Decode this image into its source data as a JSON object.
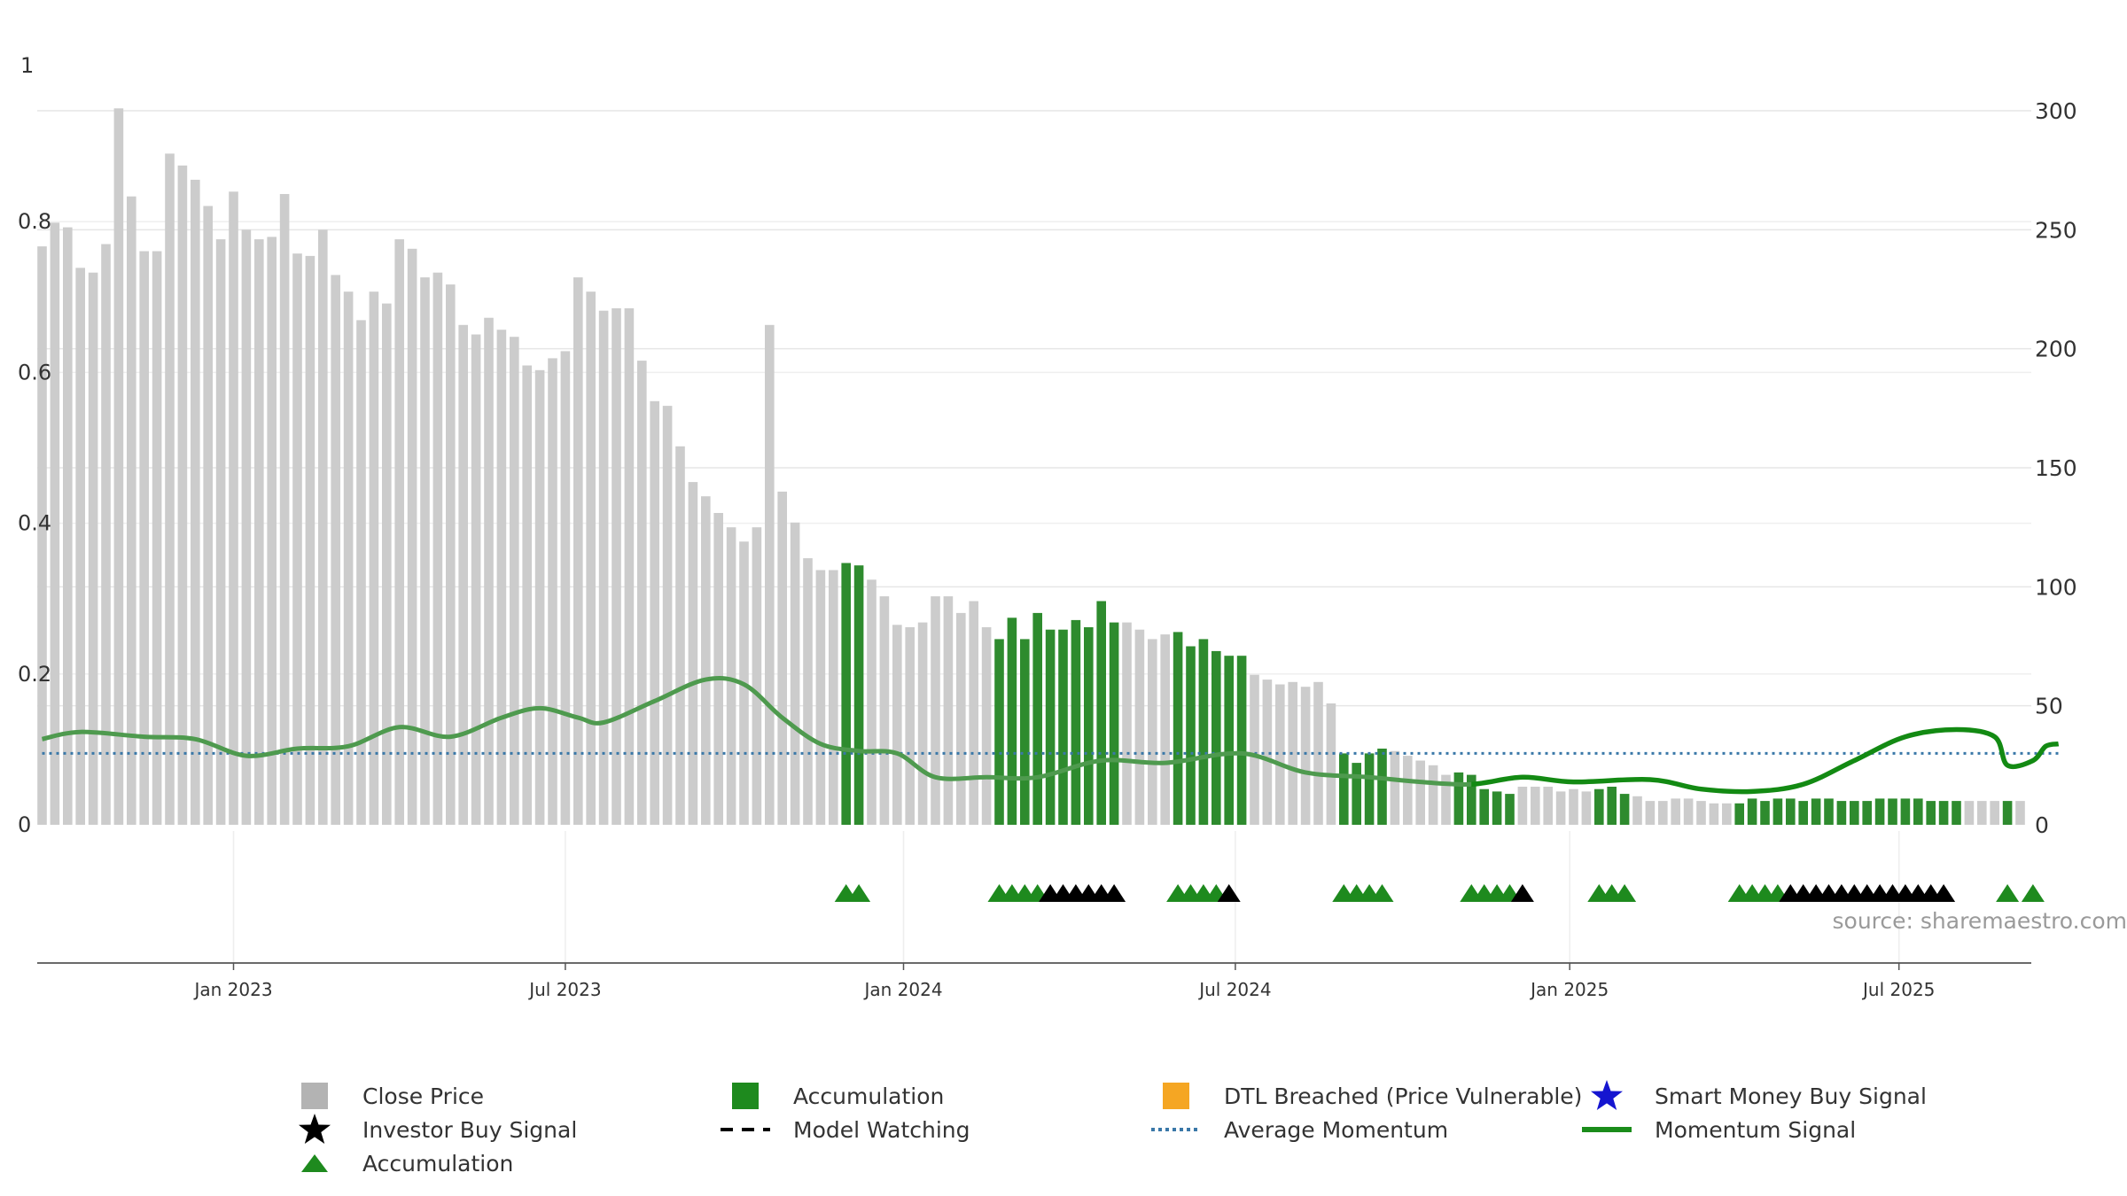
{
  "chart_data": {
    "type": "bar",
    "source_text": "source: sharemaestro.com",
    "left_axis": {
      "ticks": [
        "0",
        "0.2",
        "0.4",
        "0.6",
        "0.8",
        "1"
      ],
      "range": [
        0,
        1
      ]
    },
    "right_axis": {
      "ticks": [
        "0",
        "50",
        "100",
        "150",
        "200",
        "250",
        "300"
      ],
      "range": [
        0,
        300
      ]
    },
    "x_ticks": [
      {
        "label": "Jan 2023",
        "week": 15
      },
      {
        "label": "Jul 2023",
        "week": 41
      },
      {
        "label": "Jan 2024",
        "week": 67.5
      },
      {
        "label": "Jul 2024",
        "week": 93.5
      },
      {
        "label": "Jan 2025",
        "week": 119.7
      },
      {
        "label": "Jul 2025",
        "week": 145.5
      }
    ],
    "close_price": [
      243,
      253,
      251,
      234,
      232,
      244,
      301,
      264,
      241,
      241,
      282,
      277,
      271,
      260,
      246,
      266,
      250,
      246,
      247,
      265,
      240,
      239,
      250,
      231,
      224,
      212,
      224,
      219,
      246,
      242,
      230,
      232,
      227,
      210,
      206,
      213,
      208,
      205,
      193,
      191,
      196,
      199,
      230,
      224,
      216,
      217,
      217,
      195,
      178,
      176,
      159,
      144,
      138,
      131,
      125,
      119,
      125,
      210,
      140,
      127,
      112,
      107,
      107,
      110,
      109,
      103,
      96,
      84,
      83,
      85,
      96,
      96,
      89,
      94,
      83,
      78,
      87,
      78,
      89,
      82,
      82,
      86,
      83,
      94,
      85,
      85,
      82,
      78,
      80,
      81,
      75,
      78,
      73,
      71,
      71,
      63,
      61,
      59,
      60,
      58,
      60,
      51,
      30,
      26,
      30,
      32,
      31,
      29,
      27,
      25,
      21,
      22,
      21,
      15,
      14,
      13,
      16,
      16,
      16,
      14,
      15,
      14,
      15,
      16,
      13,
      12,
      10,
      10,
      11,
      11,
      10,
      9,
      9,
      9,
      11,
      10,
      11,
      11,
      10,
      11,
      11,
      10,
      10,
      10,
      11,
      11,
      11,
      11,
      10,
      10,
      10,
      10,
      10,
      10,
      10,
      10
    ],
    "accumulation_weeks": [
      63,
      64,
      75,
      76,
      77,
      78,
      79,
      80,
      81,
      82,
      83,
      84,
      89,
      90,
      91,
      92,
      93,
      94,
      102,
      103,
      104,
      105,
      111,
      112,
      113,
      114,
      115,
      122,
      123,
      124,
      133,
      134,
      135,
      136,
      137,
      138,
      139,
      140,
      141,
      142,
      143,
      144,
      145,
      146,
      147,
      148,
      149,
      150,
      154,
      156
    ],
    "signal_rows": {
      "accumulation_triangles": [
        63,
        64,
        75,
        76,
        77,
        78,
        89,
        90,
        91,
        92,
        102,
        103,
        104,
        105,
        112,
        113,
        114,
        115,
        122,
        123,
        124,
        133,
        134,
        135,
        136,
        154,
        156
      ],
      "investor_buy_signals": [
        79,
        80,
        81,
        82,
        83,
        84,
        93,
        116,
        137,
        138,
        139,
        140,
        141,
        142,
        143,
        144,
        145,
        146,
        147,
        148,
        149
      ]
    },
    "average_momentum": 30,
    "momentum_signal": [
      [
        0,
        36
      ],
      [
        3,
        39
      ],
      [
        8,
        37
      ],
      [
        12,
        36
      ],
      [
        16,
        29
      ],
      [
        20,
        32
      ],
      [
        24,
        33
      ],
      [
        28,
        41
      ],
      [
        32,
        37
      ],
      [
        36,
        45
      ],
      [
        39,
        49
      ],
      [
        42,
        45
      ],
      [
        44,
        43
      ],
      [
        48,
        52
      ],
      [
        52,
        61
      ],
      [
        55,
        59
      ],
      [
        58,
        45
      ],
      [
        61,
        34
      ],
      [
        64,
        31
      ],
      [
        67,
        30
      ],
      [
        70,
        20
      ],
      [
        74,
        20
      ],
      [
        78,
        20
      ],
      [
        83,
        27
      ],
      [
        88,
        26
      ],
      [
        94,
        30
      ],
      [
        99,
        22
      ],
      [
        104,
        20
      ],
      [
        108,
        18
      ],
      [
        112,
        17
      ],
      [
        116,
        20
      ],
      [
        120,
        18
      ],
      [
        126,
        19
      ],
      [
        130,
        15
      ],
      [
        134,
        14
      ],
      [
        138,
        17
      ],
      [
        142,
        27
      ],
      [
        146,
        37
      ],
      [
        150,
        40
      ],
      [
        153,
        37
      ],
      [
        154,
        25
      ],
      [
        156,
        27
      ],
      [
        157,
        33
      ],
      [
        158,
        34
      ]
    ]
  },
  "legend": [
    {
      "key": "close_price",
      "label": "Close Price",
      "color": "#b3b3b3",
      "symbol": "square"
    },
    {
      "key": "accumulation_bar",
      "label": "Accumulation",
      "color": "#1e8a1e",
      "symbol": "square"
    },
    {
      "key": "dtl_breached",
      "label": "DTL Breached (Price Vulnerable)",
      "color": "#f5a623",
      "symbol": "square"
    },
    {
      "key": "smart_money",
      "label": "Smart Money Buy Signal",
      "color": "#1515d0",
      "symbol": "star"
    },
    {
      "key": "investor_buy",
      "label": "Investor Buy Signal",
      "color": "#000000",
      "symbol": "star"
    },
    {
      "key": "model_watching",
      "label": "Model Watching",
      "color": "#000000",
      "symbol": "dash"
    },
    {
      "key": "average_momentum",
      "label": "Average Momentum",
      "color": "#3a78a8",
      "symbol": "dotted"
    },
    {
      "key": "momentum_signal",
      "label": "Momentum Signal",
      "color": "#1a8c1a",
      "symbol": "line"
    },
    {
      "key": "accumulation_triangle",
      "label": "Accumulation",
      "color": "#1e8a1e",
      "symbol": "triangle"
    }
  ]
}
